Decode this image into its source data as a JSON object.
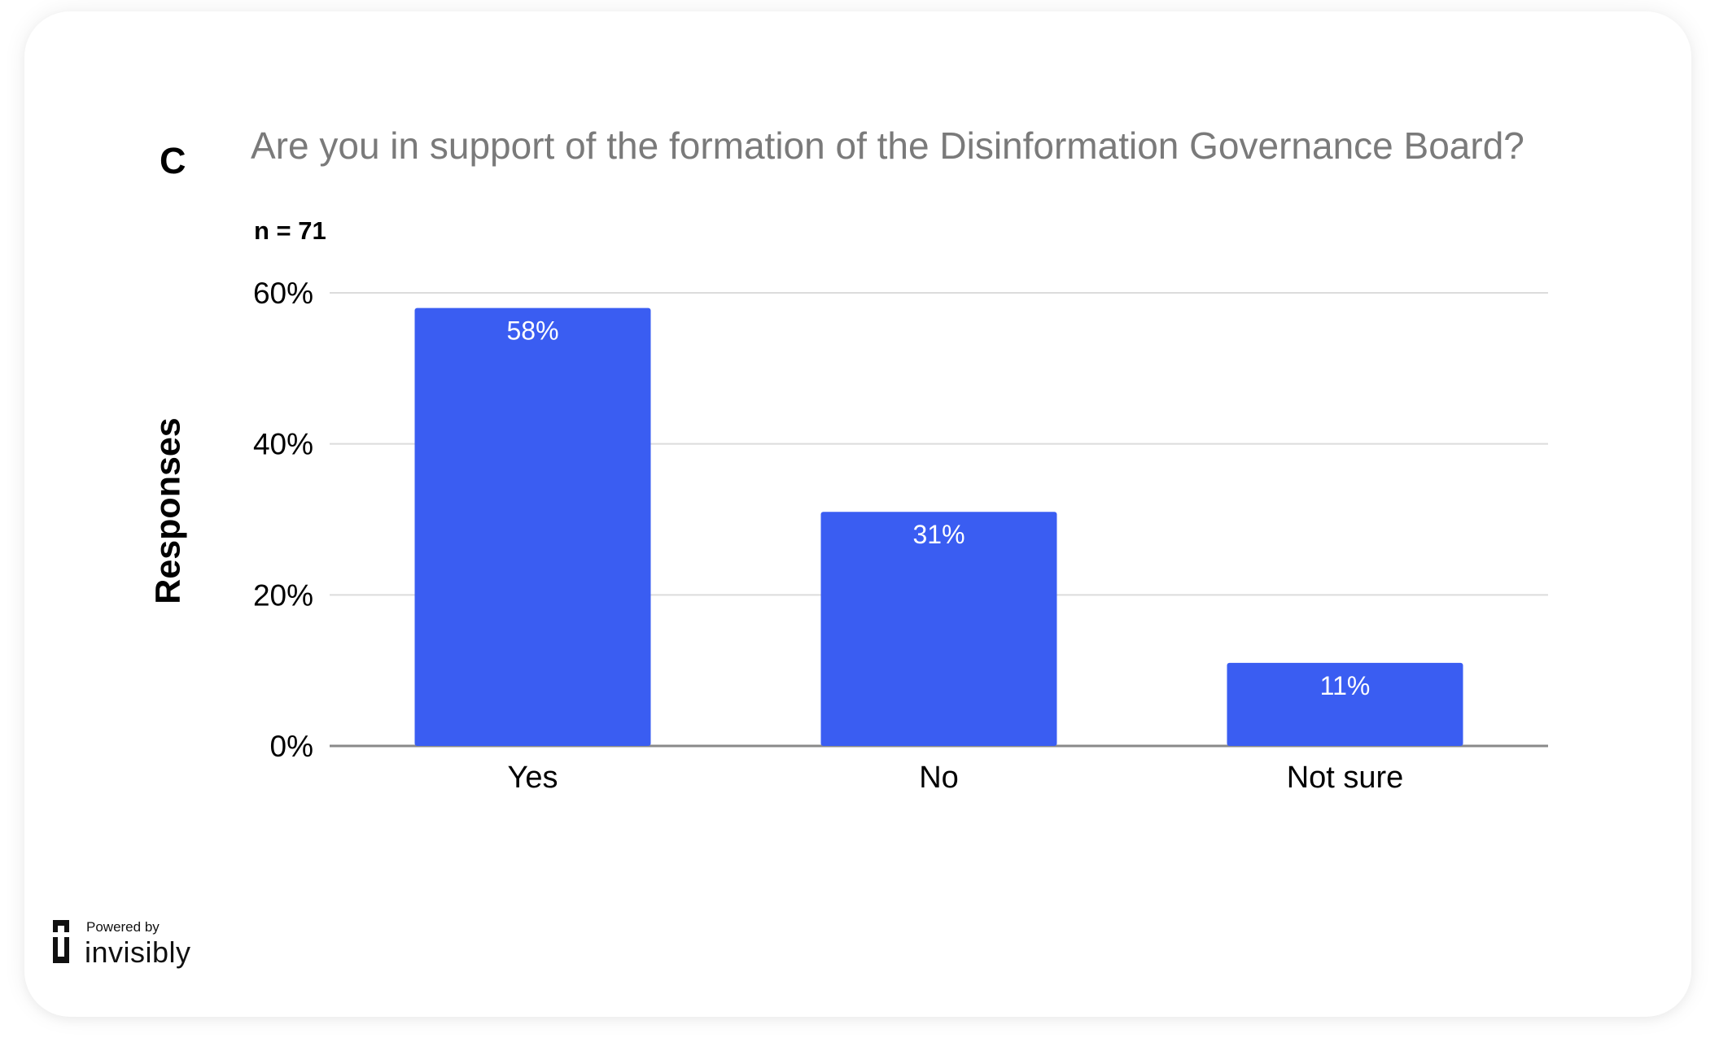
{
  "panel_letter": "C",
  "chart_data": {
    "type": "bar",
    "title": "Are you in support of the formation of the Disinformation Governance Board?",
    "subtitle": "n = 71",
    "xlabel": "",
    "ylabel": "Responses",
    "categories": [
      "Yes",
      "No",
      "Not sure"
    ],
    "values": [
      58,
      31,
      11
    ],
    "data_labels": [
      "58%",
      "31%",
      "11%"
    ],
    "ylim": [
      0,
      60
    ],
    "yticks": [
      0,
      20,
      40,
      60
    ],
    "ytick_labels": [
      "0%",
      "20%",
      "40%",
      "60%"
    ],
    "grid": true,
    "legend": "none",
    "bar_color": "#3a5df2",
    "grid_color": "#dcdcdc",
    "axis_color": "#8a8a8a"
  },
  "branding": {
    "powered_by": "Powered by",
    "name": "invisibly"
  }
}
